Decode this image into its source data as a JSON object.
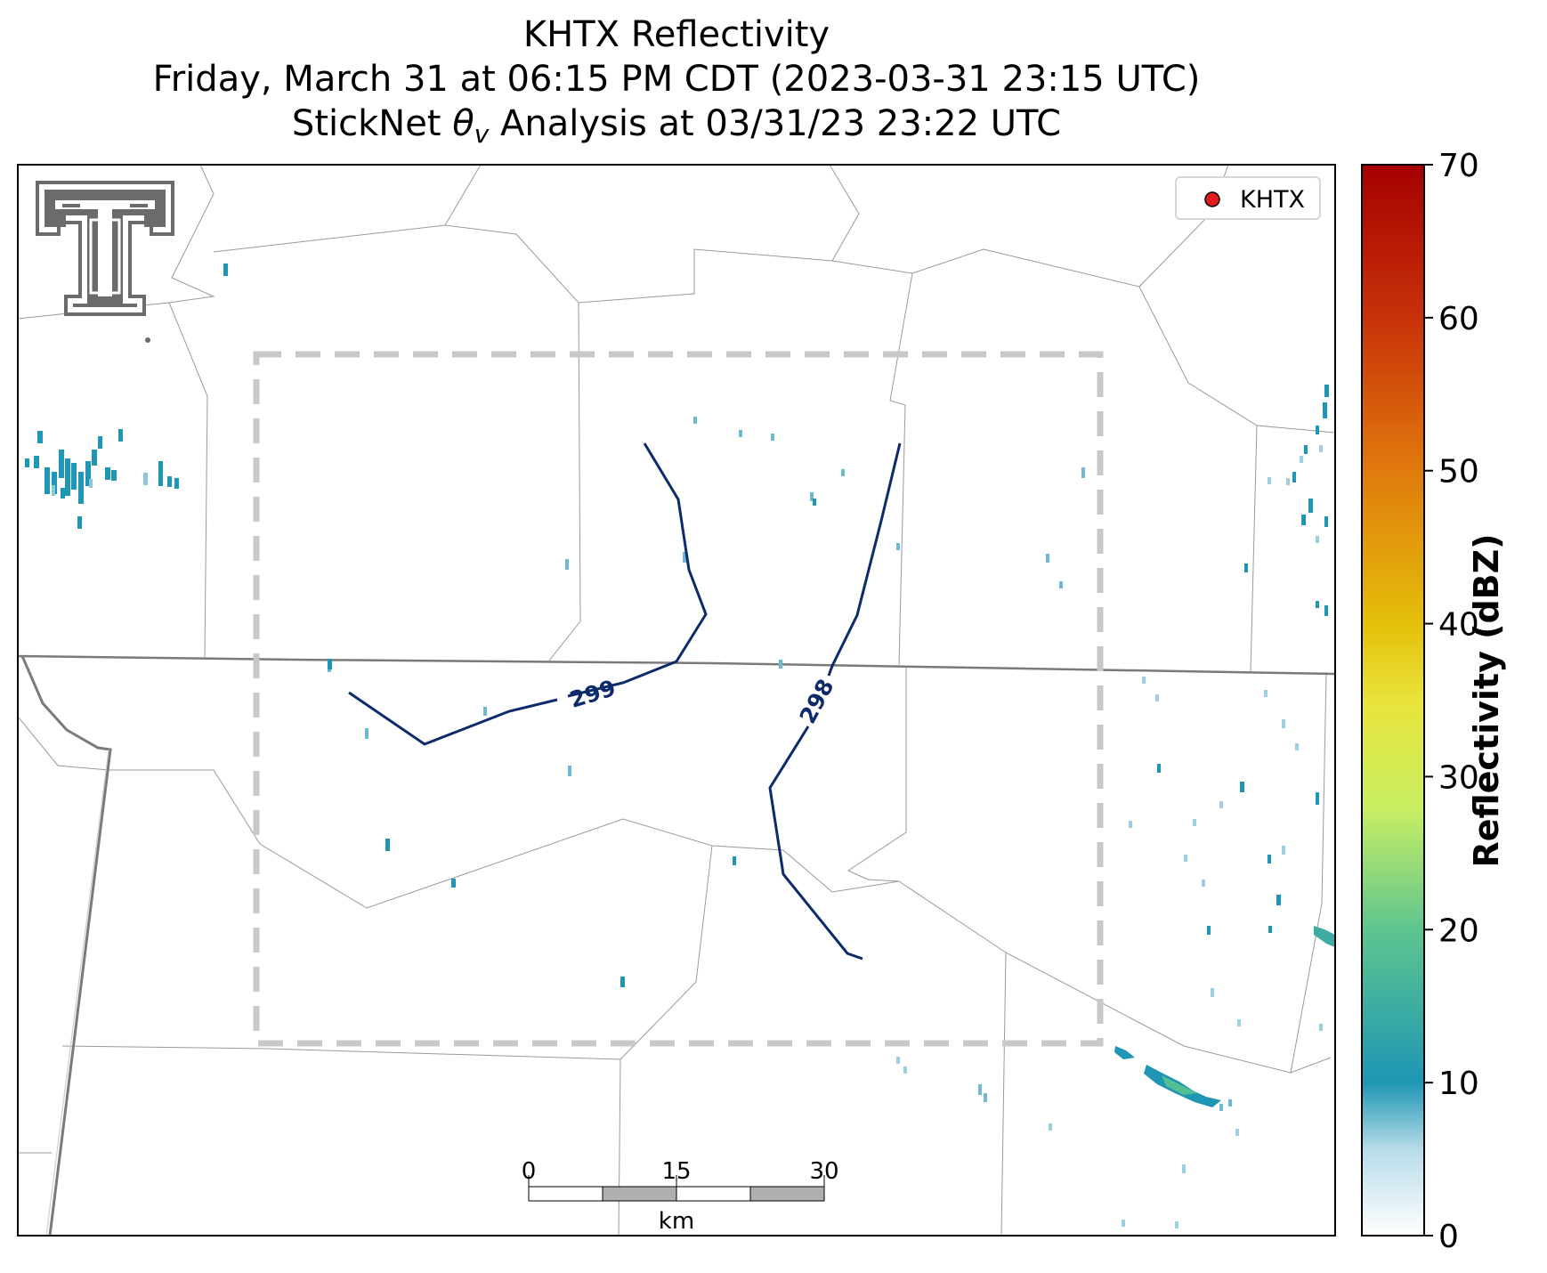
{
  "title": {
    "line1": "KHTX Reflectivity",
    "line2": "Friday, March 31 at 06:15 PM CDT (2023-03-31 23:15 UTC)",
    "line3_prefix": "StickNet ",
    "line3_symbol": "θ",
    "line3_subscript": "v",
    "line3_suffix": " Analysis at 03/31/23 23:22 UTC"
  },
  "legend": {
    "label": "KHTX",
    "marker_color": "#e41a1c"
  },
  "colorbar": {
    "label": "Reflectivity (dBZ)",
    "ticks": [
      "0",
      "10",
      "20",
      "30",
      "40",
      "50",
      "60",
      "70"
    ],
    "range": [
      0,
      70
    ],
    "colors": [
      "#ffffff",
      "#1e96b4",
      "#5ec58f",
      "#d9ef60",
      "#e4c00a",
      "#e07a0d",
      "#c8320a",
      "#a50000"
    ]
  },
  "contours": [
    {
      "label": "299",
      "color": "#0d2a6b"
    },
    {
      "label": "298",
      "color": "#0d2a6b"
    }
  ],
  "scalebar": {
    "ticks": [
      "0",
      "15",
      "30"
    ],
    "unit": "km"
  },
  "analysis_box": {
    "color": "#c8c8c8",
    "style": "dashed"
  },
  "logo": {
    "icon": "texas-tech-double-t-logo",
    "color": "#6b6b6b"
  }
}
